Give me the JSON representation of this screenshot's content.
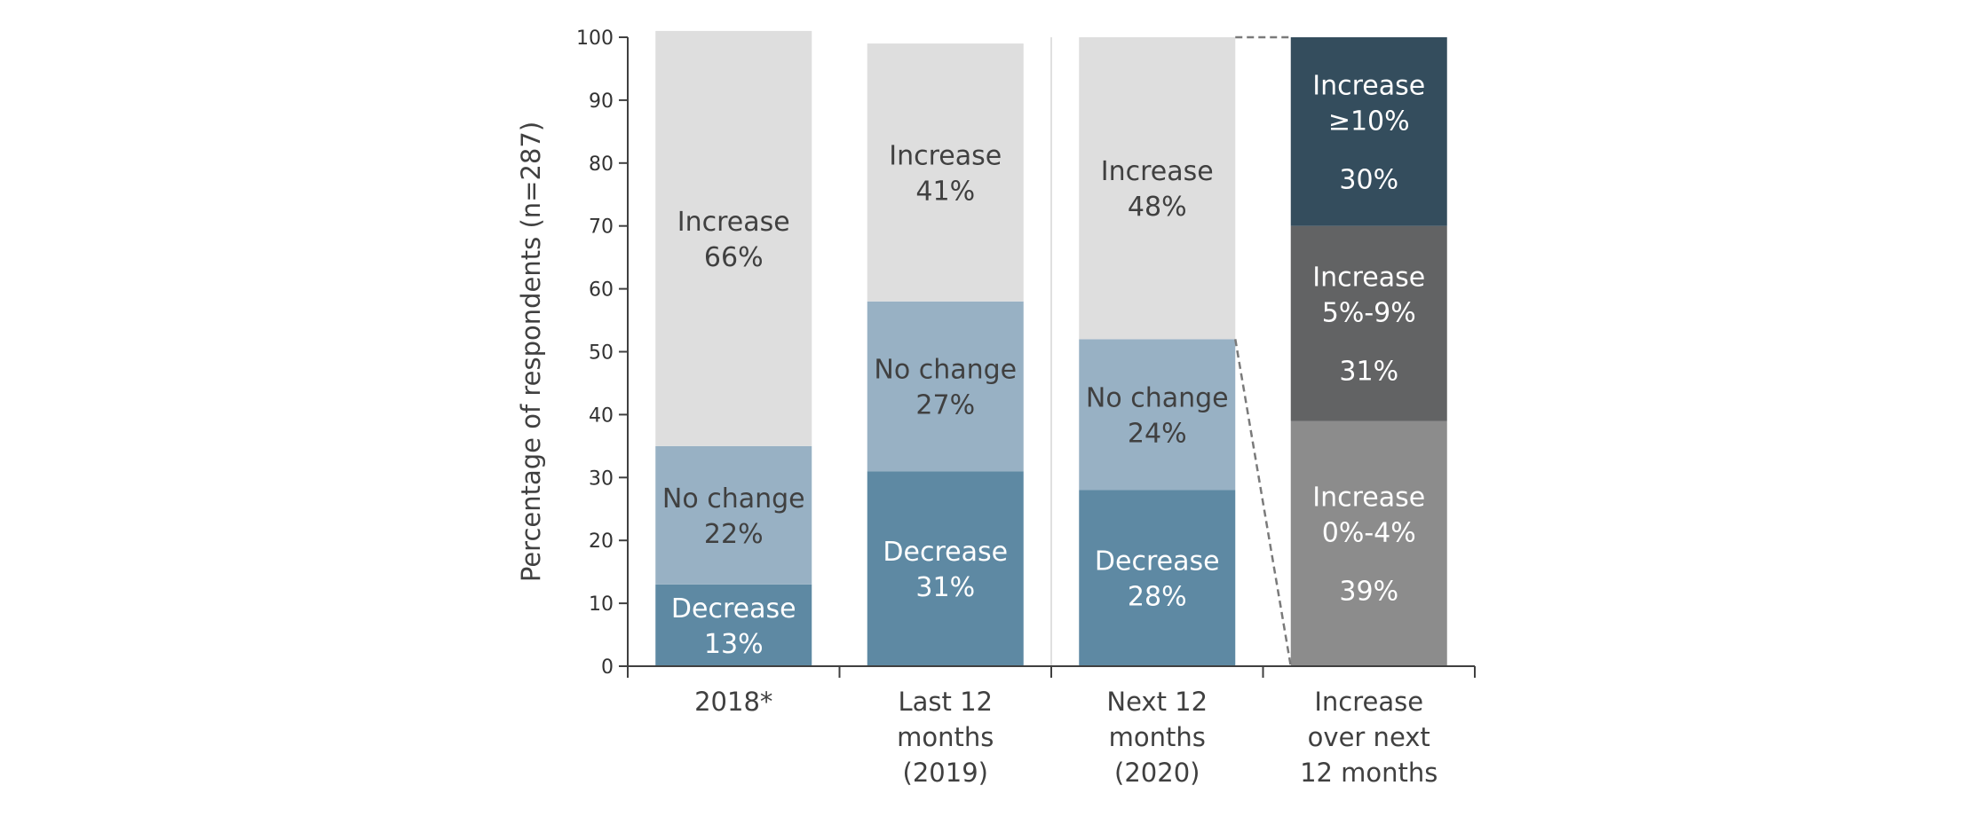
{
  "chart_data": {
    "type": "bar",
    "stacked": true,
    "ylabel": "Percentage of respondents (n=287)",
    "ylim": [
      0,
      100
    ],
    "yticks": [
      0,
      10,
      20,
      30,
      40,
      50,
      60,
      70,
      80,
      90,
      100
    ],
    "grid": false,
    "categories": [
      [
        "2018*"
      ],
      [
        "Last 12",
        "months",
        "(2019)"
      ],
      [
        "Next 12",
        "months",
        "(2020)"
      ],
      [
        "Increase",
        "over next",
        "12 months"
      ]
    ],
    "bars": [
      {
        "category": "2018*",
        "segments": [
          {
            "label": [
              "Decrease",
              "13%"
            ],
            "value": 13,
            "color": "#5e89a3",
            "text_color": "#ffffff"
          },
          {
            "label": [
              "No change",
              "22%"
            ],
            "value": 22,
            "color": "#98b1c4",
            "text_color": "#404040"
          },
          {
            "label": [
              "Increase",
              "66%"
            ],
            "value": 66,
            "color": "#dedede",
            "text_color": "#404040"
          }
        ]
      },
      {
        "category": "Last 12 months (2019)",
        "segments": [
          {
            "label": [
              "Decrease",
              "31%"
            ],
            "value": 31,
            "color": "#5e89a3",
            "text_color": "#ffffff"
          },
          {
            "label": [
              "No change",
              "27%"
            ],
            "value": 27,
            "color": "#98b1c4",
            "text_color": "#404040"
          },
          {
            "label": [
              "Increase",
              "41%"
            ],
            "value": 41,
            "color": "#dedede",
            "text_color": "#404040"
          }
        ]
      },
      {
        "category": "Next 12 months (2020)",
        "segments": [
          {
            "label": [
              "Decrease",
              "28%"
            ],
            "value": 28,
            "color": "#5e89a3",
            "text_color": "#ffffff"
          },
          {
            "label": [
              "No change",
              "24%"
            ],
            "value": 24,
            "color": "#98b1c4",
            "text_color": "#404040"
          },
          {
            "label": [
              "Increase",
              "48%"
            ],
            "value": 48,
            "color": "#dedede",
            "text_color": "#404040"
          }
        ]
      },
      {
        "category": "Increase over next 12 months",
        "segments": [
          {
            "label": [
              "Increase",
              "0%-4%",
              "39%"
            ],
            "value": 39,
            "color": "#8c8c8c",
            "text_color": "#ffffff"
          },
          {
            "label": [
              "Increase",
              "5%-9%",
              "31%"
            ],
            "value": 31,
            "color": "#626364",
            "text_color": "#ffffff"
          },
          {
            "label": [
              "Increase",
              "≥10%",
              "30%"
            ],
            "value": 30,
            "color": "#344d5d",
            "text_color": "#ffffff"
          }
        ]
      }
    ],
    "annotations": [
      "dashed lines connect the 'Increase' segment of 'Next 12 months (2020)' to the 'Increase over next 12 months' breakdown bar"
    ]
  }
}
